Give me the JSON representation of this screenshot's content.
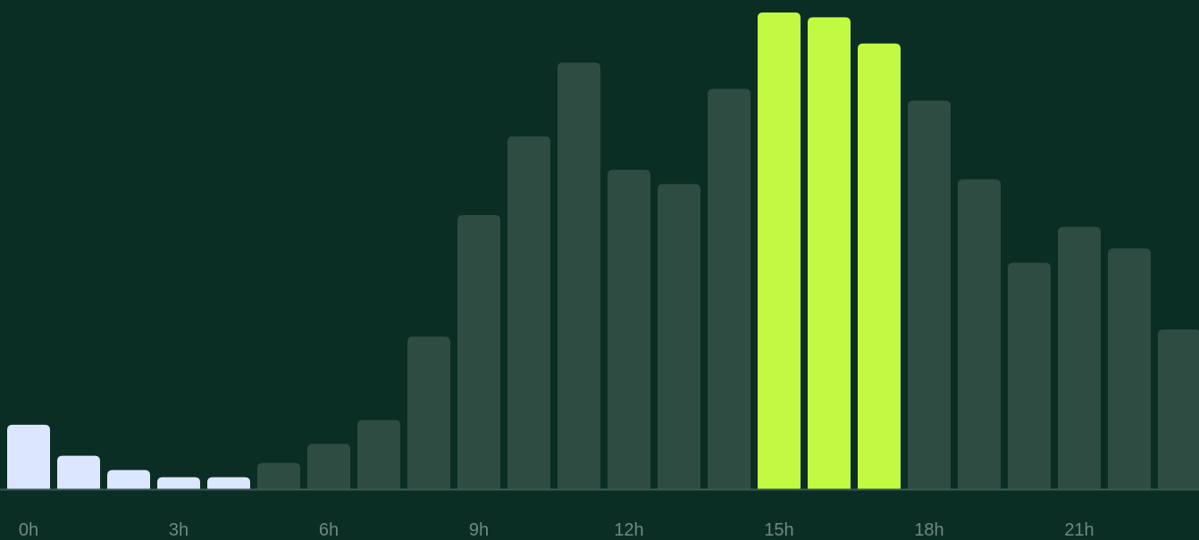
{
  "colors": {
    "background": "#0b2e24",
    "bar_default": "#2f4c43",
    "bar_night": "#dde6ff",
    "bar_peak": "#c2fa42",
    "baseline": "#3b5a50",
    "tick_label": "#6f8a80"
  },
  "chart_data": {
    "type": "bar",
    "categories": [
      "0h",
      "1h",
      "2h",
      "3h",
      "4h",
      "5h",
      "6h",
      "7h",
      "8h",
      "9h",
      "10h",
      "11h",
      "12h",
      "13h",
      "14h",
      "15h",
      "16h",
      "17h",
      "18h",
      "19h",
      "20h",
      "21h",
      "22h",
      "23h"
    ],
    "values": [
      13.5,
      7,
      4,
      2.5,
      2.5,
      5.5,
      9.5,
      14.5,
      32,
      57.5,
      74,
      89.5,
      67,
      64,
      84,
      100,
      99,
      93.5,
      81.5,
      65,
      47.5,
      55,
      50.5,
      33.5
    ],
    "highlight": {
      "night": [
        0,
        1,
        2,
        3,
        4
      ],
      "peak": [
        15,
        16,
        17
      ]
    },
    "x_tick_labels": [
      "0h",
      "3h",
      "6h",
      "9h",
      "12h",
      "15h",
      "18h",
      "21h"
    ],
    "x_tick_indices": [
      0,
      3,
      6,
      9,
      12,
      15,
      18,
      21
    ],
    "ylim": [
      0,
      100
    ],
    "grid": false,
    "legend": "none",
    "title": "",
    "xlabel": "",
    "ylabel": ""
  }
}
